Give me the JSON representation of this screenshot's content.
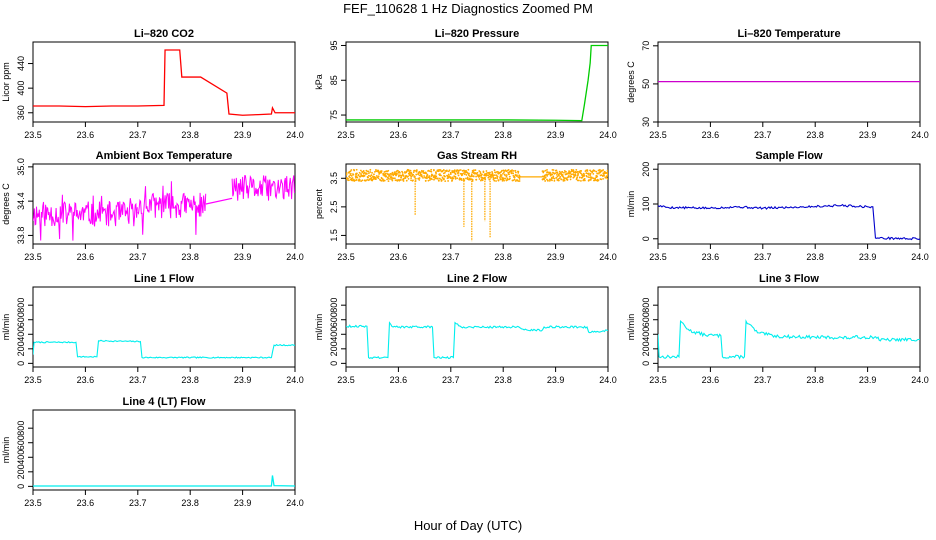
{
  "figure": {
    "title": "FEF_110628  1 Hz Diagnostics Zoomed PM",
    "x_label": "Hour of Day (UTC)"
  },
  "chart_data": [
    {
      "type": "line",
      "title": "Li–820 CO2",
      "ylabel": "Licor ppm",
      "color": "#ff0000",
      "xlim": [
        23.5,
        24.0
      ],
      "ylim": [
        345,
        475
      ],
      "xticks": [
        "23.5",
        "23.6",
        "23.7",
        "23.8",
        "23.9",
        "24.0"
      ],
      "yticks": [
        {
          "value": 360,
          "label": "360"
        },
        {
          "value": 400,
          "label": "400"
        },
        {
          "value": 440,
          "label": "440"
        }
      ],
      "series": [
        {
          "points": [
            [
              23.5,
              371
            ],
            [
              23.55,
              371
            ],
            [
              23.6,
              370
            ],
            [
              23.65,
              371
            ],
            [
              23.7,
              371
            ],
            [
              23.75,
              372
            ],
            [
              23.752,
              462
            ],
            [
              23.78,
              462
            ],
            [
              23.784,
              418
            ],
            [
              23.82,
              418
            ],
            [
              23.87,
              392
            ],
            [
              23.874,
              358
            ],
            [
              23.9,
              356
            ],
            [
              23.93,
              357
            ],
            [
              23.955,
              358
            ],
            [
              23.957,
              368
            ],
            [
              23.962,
              360
            ],
            [
              24.0,
              360
            ]
          ]
        }
      ]
    },
    {
      "type": "line",
      "title": "Li–820 Pressure",
      "ylabel": "kPa",
      "color": "#00cc00",
      "xlim": [
        23.5,
        24.0
      ],
      "ylim": [
        73,
        96
      ],
      "xticks": [
        "23.5",
        "23.6",
        "23.7",
        "23.8",
        "23.9",
        "24.0"
      ],
      "yticks": [
        {
          "value": 75,
          "label": "75"
        },
        {
          "value": 85,
          "label": "85"
        },
        {
          "value": 95,
          "label": "95"
        }
      ],
      "series": [
        {
          "points": [
            [
              23.5,
              73.6
            ],
            [
              23.6,
              73.6
            ],
            [
              23.7,
              73.6
            ],
            [
              23.8,
              73.6
            ],
            [
              23.9,
              73.5
            ],
            [
              23.95,
              73.4
            ],
            [
              23.955,
              78
            ],
            [
              23.962,
              85
            ],
            [
              23.966,
              90
            ],
            [
              23.968,
              95
            ],
            [
              24.0,
              95
            ]
          ]
        }
      ]
    },
    {
      "type": "line",
      "title": "Li–820 Temperature",
      "ylabel": "degrees C",
      "color": "#cc00cc",
      "xlim": [
        23.5,
        24.0
      ],
      "ylim": [
        30,
        72
      ],
      "xticks": [
        "23.5",
        "23.6",
        "23.7",
        "23.8",
        "23.9",
        "24.0"
      ],
      "yticks": [
        {
          "value": 30,
          "label": "30"
        },
        {
          "value": 50,
          "label": "50"
        },
        {
          "value": 70,
          "label": "70"
        }
      ],
      "series": [
        {
          "points": [
            [
              23.5,
              51.2
            ],
            [
              24.0,
              51.2
            ]
          ]
        }
      ]
    },
    {
      "type": "line",
      "title": "Ambient Box Temperature",
      "ylabel": "degrees C",
      "color": "#ff00ff",
      "xlim": [
        23.5,
        24.0
      ],
      "ylim": [
        33.65,
        35.05
      ],
      "xticks": [
        "23.5",
        "23.6",
        "23.7",
        "23.8",
        "23.9",
        "24.0"
      ],
      "yticks": [
        {
          "value": 33.8,
          "label": "33.8"
        },
        {
          "value": 34.4,
          "label": "34.4"
        },
        {
          "value": 35.0,
          "label": "35.0"
        }
      ],
      "noise": {
        "mode": "band",
        "seed": 11
      },
      "series": [
        {
          "segments": [
            {
              "x0": 23.5,
              "x1": 23.7,
              "lo": 33.95,
              "hi": 34.4,
              "spike_lo": 33.7,
              "spike_hi": 34.55
            },
            {
              "x0": 23.7,
              "x1": 23.83,
              "lo": 34.1,
              "hi": 34.55,
              "spike_lo": 33.75,
              "spike_hi": 34.75
            },
            {
              "x0": 23.83,
              "x1": 23.88,
              "line": [
                34.35,
                34.45
              ]
            },
            {
              "x0": 23.88,
              "x1": 24.0,
              "lo": 34.4,
              "hi": 34.85,
              "spike_lo": 34.3,
              "spike_hi": 35.0
            }
          ]
        }
      ]
    },
    {
      "type": "scatter",
      "title": "Gas Stream RH",
      "ylabel": "percent",
      "color": "#ffaa00",
      "xlim": [
        23.5,
        24.0
      ],
      "ylim": [
        1.2,
        4.0
      ],
      "xticks": [
        "23.5",
        "23.6",
        "23.7",
        "23.8",
        "23.9",
        "24.0"
      ],
      "yticks": [
        {
          "value": 1.5,
          "label": "1.5"
        },
        {
          "value": 2.5,
          "label": "2.5"
        },
        {
          "value": 3.5,
          "label": "3.5"
        }
      ],
      "noise": {
        "mode": "dots",
        "seed": 23
      },
      "series": [
        {
          "segments": [
            {
              "x0": 23.5,
              "x1": 23.83,
              "lo": 3.4,
              "hi": 3.8
            },
            {
              "x0": 23.83,
              "x1": 23.875,
              "line": [
                3.55,
                3.55
              ]
            },
            {
              "x0": 23.875,
              "x1": 24.0,
              "lo": 3.4,
              "hi": 3.8
            }
          ],
          "dips": [
            [
              23.632,
              2.2
            ],
            [
              23.725,
              1.8
            ],
            [
              23.74,
              1.3
            ],
            [
              23.765,
              2.0
            ],
            [
              23.775,
              1.4
            ]
          ]
        }
      ]
    },
    {
      "type": "line",
      "title": "Sample Flow",
      "ylabel": "ml/min",
      "color": "#0000cc",
      "xlim": [
        23.5,
        24.0
      ],
      "ylim": [
        -15,
        215
      ],
      "xticks": [
        "23.5",
        "23.6",
        "23.7",
        "23.8",
        "23.9",
        "24.0"
      ],
      "yticks": [
        {
          "value": 0,
          "label": "0"
        },
        {
          "value": 100,
          "label": "100"
        },
        {
          "value": 200,
          "label": "200"
        }
      ],
      "noise": {
        "mode": "thin",
        "seed": 5,
        "amp": 3
      },
      "series": [
        {
          "points": [
            [
              23.5,
              95
            ],
            [
              23.52,
              90
            ],
            [
              23.6,
              88
            ],
            [
              23.65,
              92
            ],
            [
              23.7,
              88
            ],
            [
              23.8,
              93
            ],
            [
              23.85,
              96
            ],
            [
              23.9,
              92
            ],
            [
              23.91,
              92
            ],
            [
              23.915,
              2
            ],
            [
              24.0,
              0
            ]
          ]
        }
      ]
    },
    {
      "type": "line",
      "title": "Line 1 Flow",
      "ylabel": "ml/min",
      "color": "#00eeee",
      "xlim": [
        23.5,
        24.0
      ],
      "ylim": [
        -50,
        1050
      ],
      "xticks": [
        "23.5",
        "23.6",
        "23.7",
        "23.8",
        "23.9",
        "24.0"
      ],
      "yticks": [
        {
          "value": 0,
          "label": "0"
        },
        {
          "value": 200,
          "label": "200"
        },
        {
          "value": 400,
          "label": "400"
        },
        {
          "value": 600,
          "label": "600"
        },
        {
          "value": 800,
          "label": "800"
        }
      ],
      "noise": {
        "mode": "thin",
        "seed": 7,
        "amp": 8
      },
      "series": [
        {
          "points": [
            [
              23.5,
              120
            ],
            [
              23.502,
              290
            ],
            [
              23.582,
              290
            ],
            [
              23.585,
              90
            ],
            [
              23.622,
              90
            ],
            [
              23.625,
              310
            ],
            [
              23.705,
              300
            ],
            [
              23.708,
              80
            ],
            [
              23.955,
              80
            ],
            [
              23.96,
              250
            ],
            [
              24.0,
              250
            ]
          ]
        }
      ]
    },
    {
      "type": "line",
      "title": "Line 2 Flow",
      "ylabel": "ml/min",
      "color": "#00eeee",
      "xlim": [
        23.5,
        24.0
      ],
      "ylim": [
        -50,
        1050
      ],
      "xticks": [
        "23.5",
        "23.6",
        "23.7",
        "23.8",
        "23.9",
        "24.0"
      ],
      "yticks": [
        {
          "value": 0,
          "label": "0"
        },
        {
          "value": 200,
          "label": "200"
        },
        {
          "value": 400,
          "label": "400"
        },
        {
          "value": 600,
          "label": "600"
        },
        {
          "value": 800,
          "label": "800"
        }
      ],
      "noise": {
        "mode": "thin",
        "seed": 9,
        "amp": 14
      },
      "series": [
        {
          "points": [
            [
              23.5,
              510
            ],
            [
              23.54,
              510
            ],
            [
              23.543,
              80
            ],
            [
              23.58,
              80
            ],
            [
              23.583,
              560
            ],
            [
              23.59,
              500
            ],
            [
              23.665,
              500
            ],
            [
              23.668,
              80
            ],
            [
              23.705,
              80
            ],
            [
              23.708,
              560
            ],
            [
              23.72,
              500
            ],
            [
              23.83,
              500
            ],
            [
              23.84,
              460
            ],
            [
              23.875,
              460
            ],
            [
              23.878,
              500
            ],
            [
              23.96,
              500
            ],
            [
              23.963,
              430
            ],
            [
              24.0,
              450
            ]
          ]
        }
      ]
    },
    {
      "type": "line",
      "title": "Line 3 Flow",
      "ylabel": "ml/min",
      "color": "#00eeee",
      "xlim": [
        23.5,
        24.0
      ],
      "ylim": [
        -50,
        1050
      ],
      "xticks": [
        "23.5",
        "23.6",
        "23.7",
        "23.8",
        "23.9",
        "24.0"
      ],
      "yticks": [
        {
          "value": 0,
          "label": "0"
        },
        {
          "value": 200,
          "label": "200"
        },
        {
          "value": 400,
          "label": "400"
        },
        {
          "value": 600,
          "label": "600"
        },
        {
          "value": 800,
          "label": "800"
        }
      ],
      "noise": {
        "mode": "thin",
        "seed": 13,
        "amp": 22
      },
      "series": [
        {
          "points": [
            [
              23.5,
              400
            ],
            [
              23.502,
              90
            ],
            [
              23.54,
              90
            ],
            [
              23.543,
              580
            ],
            [
              23.56,
              450
            ],
            [
              23.59,
              390
            ],
            [
              23.62,
              380
            ],
            [
              23.623,
              90
            ],
            [
              23.665,
              90
            ],
            [
              23.668,
              580
            ],
            [
              23.69,
              420
            ],
            [
              23.73,
              370
            ],
            [
              23.8,
              360
            ],
            [
              23.87,
              350
            ],
            [
              23.875,
              360
            ],
            [
              23.92,
              360
            ],
            [
              23.922,
              320
            ],
            [
              24.0,
              330
            ]
          ]
        }
      ]
    },
    {
      "type": "line",
      "title": "Line 4 (LT) Flow",
      "ylabel": "ml/min",
      "color": "#00eeee",
      "xlim": [
        23.5,
        24.0
      ],
      "ylim": [
        -50,
        1050
      ],
      "xticks": [
        "23.5",
        "23.6",
        "23.7",
        "23.8",
        "23.9",
        "24.0"
      ],
      "yticks": [
        {
          "value": 0,
          "label": "0"
        },
        {
          "value": 200,
          "label": "200"
        },
        {
          "value": 400,
          "label": "400"
        },
        {
          "value": 600,
          "label": "600"
        },
        {
          "value": 800,
          "label": "800"
        }
      ],
      "series": [
        {
          "points": [
            [
              23.5,
              5
            ],
            [
              23.955,
              5
            ],
            [
              23.957,
              150
            ],
            [
              23.96,
              10
            ],
            [
              24.0,
              5
            ]
          ]
        }
      ]
    }
  ]
}
